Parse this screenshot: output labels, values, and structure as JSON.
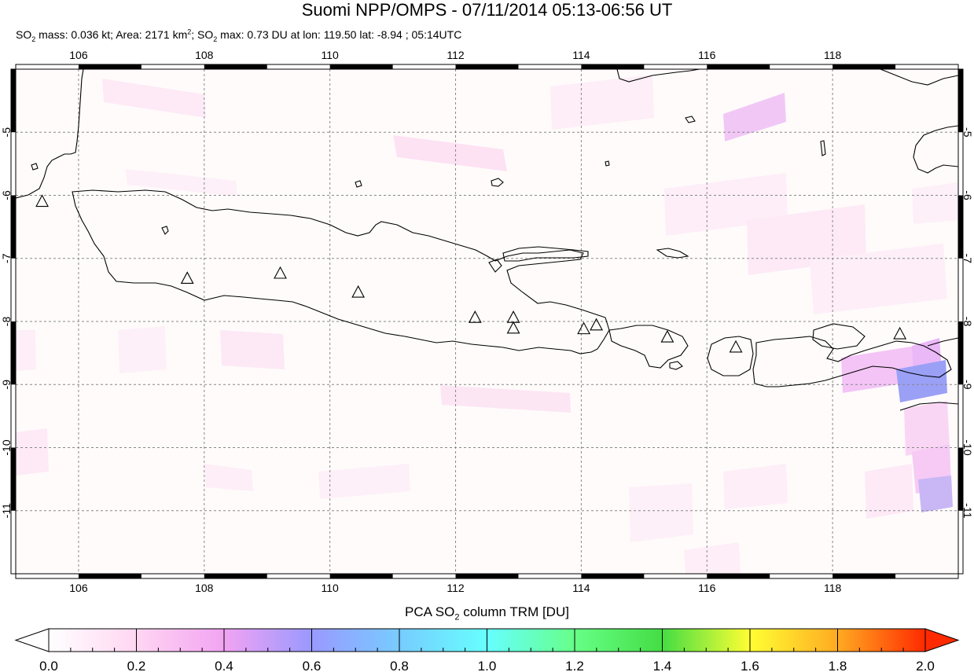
{
  "title": "Suomi NPP/OMPS - 07/11/2014 05:13-06:56 UT",
  "subtitle": {
    "p1": "SO",
    "p1_sub": "2",
    "p2": " mass: 0.036 kt; Area: 2171 km",
    "p2_sup": "2",
    "p3": "; SO",
    "p3_sub": "2",
    "p4": " max: 0.73 DU at lon: 119.50 lat: -8.94 ; 05:14UTC"
  },
  "map": {
    "lon_range": [
      105,
      120
    ],
    "lat_range": [
      -12,
      -4
    ],
    "lon_ticks": [
      "106",
      "108",
      "110",
      "112",
      "114",
      "116",
      "118"
    ],
    "lon_tick_values": [
      106,
      108,
      110,
      112,
      114,
      116,
      118
    ],
    "lat_ticks": [
      "-5",
      "-6",
      "-7",
      "-8",
      "-9",
      "-10",
      "-11"
    ],
    "lat_tick_values": [
      -5,
      -6,
      -7,
      -8,
      -9,
      -10,
      -11
    ],
    "grid": true,
    "volcanoes": [
      {
        "lon": 105.42,
        "lat": -6.1
      },
      {
        "lon": 107.73,
        "lat": -7.32
      },
      {
        "lon": 109.21,
        "lat": -7.24
      },
      {
        "lon": 110.45,
        "lat": -7.54
      },
      {
        "lon": 112.31,
        "lat": -7.94
      },
      {
        "lon": 112.92,
        "lat": -7.94
      },
      {
        "lon": 112.92,
        "lat": -8.11
      },
      {
        "lon": 114.04,
        "lat": -8.12
      },
      {
        "lon": 114.24,
        "lat": -8.06
      },
      {
        "lon": 115.37,
        "lat": -8.25
      },
      {
        "lon": 116.46,
        "lat": -8.41
      },
      {
        "lon": 119.07,
        "lat": -8.2
      }
    ]
  },
  "colorbar": {
    "title_a": "PCA SO",
    "title_sub": "2",
    "title_b": " column TRM [DU]",
    "ticks": [
      "0.0",
      "0.2",
      "0.4",
      "0.6",
      "0.8",
      "1.0",
      "1.2",
      "1.4",
      "1.6",
      "1.8",
      "2.0"
    ],
    "tick_values": [
      0.0,
      0.2,
      0.4,
      0.6,
      0.8,
      1.0,
      1.2,
      1.4,
      1.6,
      1.8,
      2.0
    ],
    "range": [
      0.0,
      2.0
    ],
    "colors": [
      "#ffffff",
      "#ffd6f2",
      "#f2a3f2",
      "#9999ff",
      "#77ccff",
      "#66ffff",
      "#66ff88",
      "#44dd44",
      "#ffff33",
      "#ffaa22",
      "#ff2a00"
    ],
    "under_color": "#ffffff",
    "over_color": "#ff2a00"
  }
}
